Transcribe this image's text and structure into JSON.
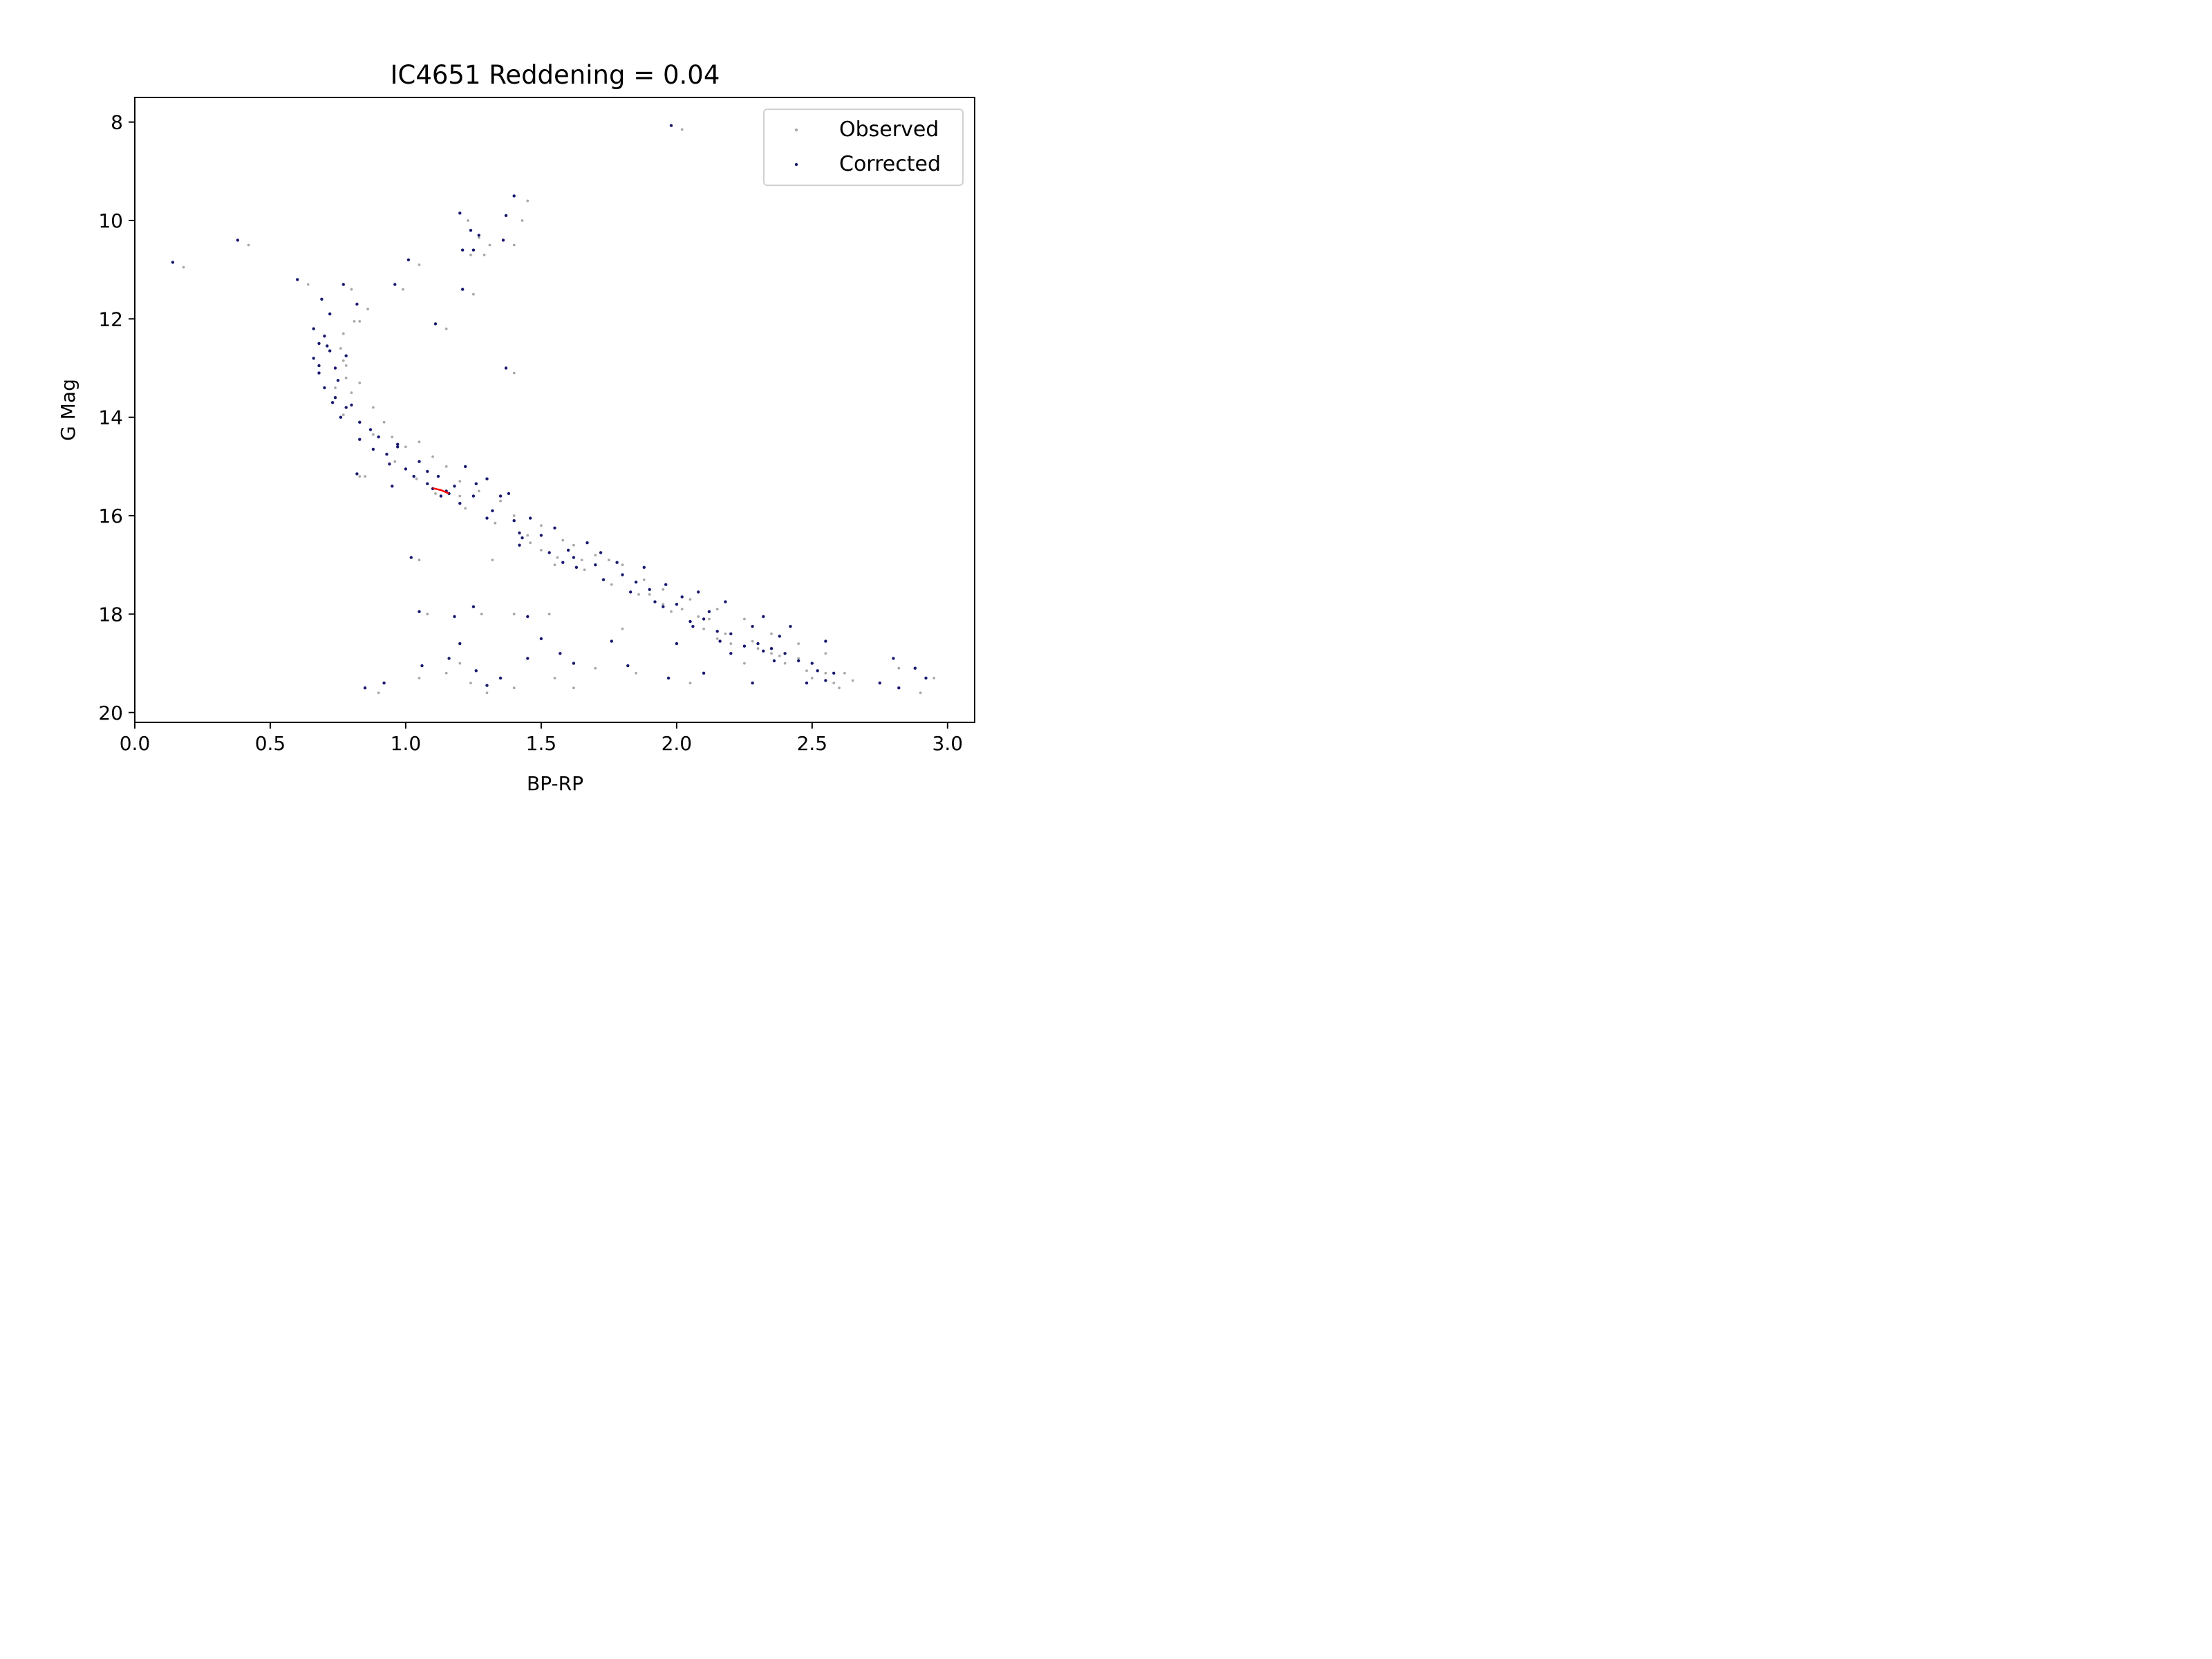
{
  "chart_data": {
    "type": "scatter",
    "title": "IC4651 Reddening = 0.04",
    "xlabel": "BP-RP",
    "ylabel": "G Mag",
    "xlim": [
      0.0,
      3.1
    ],
    "ylim": [
      20.2,
      7.5
    ],
    "y_inverted": true,
    "xticks": [
      0.0,
      0.5,
      1.0,
      1.5,
      2.0,
      2.5,
      3.0
    ],
    "xtick_labels": [
      "0.0",
      "0.5",
      "1.0",
      "1.5",
      "2.0",
      "2.5",
      "3.0"
    ],
    "yticks": [
      8,
      10,
      12,
      14,
      16,
      18,
      20
    ],
    "ytick_labels": [
      "8",
      "10",
      "12",
      "14",
      "16",
      "18",
      "20"
    ],
    "grid": false,
    "legend_position": "top-right",
    "reddening": 0.04,
    "series": [
      {
        "name": "Observed",
        "color": "#a9a9a9",
        "points": [
          [
            2.02,
            8.15
          ],
          [
            1.45,
            9.6
          ],
          [
            1.43,
            10.0
          ],
          [
            1.23,
            10.0
          ],
          [
            1.27,
            10.35
          ],
          [
            1.31,
            10.5
          ],
          [
            1.4,
            10.5
          ],
          [
            1.29,
            10.7
          ],
          [
            1.24,
            10.7
          ],
          [
            0.42,
            10.5
          ],
          [
            0.18,
            10.95
          ],
          [
            1.05,
            10.9
          ],
          [
            0.64,
            11.3
          ],
          [
            1.25,
            11.5
          ],
          [
            0.99,
            11.4
          ],
          [
            0.8,
            11.4
          ],
          [
            0.86,
            11.8
          ],
          [
            1.15,
            12.2
          ],
          [
            0.81,
            12.05
          ],
          [
            0.83,
            12.05
          ],
          [
            0.77,
            12.3
          ],
          [
            0.76,
            12.6
          ],
          [
            0.77,
            12.85
          ],
          [
            0.78,
            13.2
          ],
          [
            0.8,
            13.5
          ],
          [
            1.4,
            13.1
          ],
          [
            0.83,
            13.3
          ],
          [
            0.88,
            13.8
          ],
          [
            0.92,
            14.1
          ],
          [
            0.95,
            14.4
          ],
          [
            1.05,
            14.5
          ],
          [
            1.1,
            14.8
          ],
          [
            1.15,
            15.0
          ],
          [
            0.85,
            15.2
          ],
          [
            1.2,
            15.3
          ],
          [
            1.27,
            15.5
          ],
          [
            1.35,
            15.7
          ],
          [
            1.4,
            16.0
          ],
          [
            1.5,
            16.2
          ],
          [
            1.58,
            16.5
          ],
          [
            1.7,
            16.8
          ],
          [
            1.8,
            17.0
          ],
          [
            1.88,
            17.3
          ],
          [
            1.95,
            17.5
          ],
          [
            2.05,
            17.7
          ],
          [
            2.15,
            17.9
          ],
          [
            2.25,
            18.1
          ],
          [
            2.35,
            18.4
          ],
          [
            2.45,
            18.6
          ],
          [
            2.55,
            18.8
          ],
          [
            2.62,
            19.2
          ],
          [
            2.65,
            19.35
          ],
          [
            2.6,
            19.5
          ],
          [
            2.5,
            19.3
          ],
          [
            1.32,
            16.9
          ],
          [
            1.5,
            16.7
          ],
          [
            1.55,
            17.0
          ],
          [
            1.62,
            16.6
          ],
          [
            1.75,
            16.9
          ],
          [
            1.9,
            17.6
          ],
          [
            2.02,
            17.9
          ],
          [
            1.3,
            19.6
          ],
          [
            1.24,
            19.4
          ],
          [
            1.2,
            19.0
          ],
          [
            1.15,
            19.2
          ],
          [
            1.05,
            19.3
          ],
          [
            0.9,
            19.6
          ],
          [
            1.4,
            19.5
          ],
          [
            1.55,
            19.3
          ],
          [
            1.62,
            19.5
          ],
          [
            1.7,
            19.1
          ],
          [
            1.85,
            19.2
          ],
          [
            2.05,
            19.4
          ],
          [
            2.25,
            19.0
          ],
          [
            2.9,
            19.6
          ],
          [
            2.95,
            19.3
          ],
          [
            2.82,
            19.1
          ],
          [
            1.08,
            18.0
          ],
          [
            1.28,
            18.0
          ],
          [
            1.4,
            18.0
          ],
          [
            1.53,
            18.0
          ],
          [
            1.8,
            18.3
          ],
          [
            2.15,
            18.5
          ],
          [
            2.3,
            18.7
          ],
          [
            2.45,
            18.9
          ],
          [
            1.05,
            16.9
          ],
          [
            0.83,
            15.2
          ],
          [
            1.0,
            14.6
          ],
          [
            1.2,
            15.6
          ],
          [
            1.45,
            16.4
          ],
          [
            1.65,
            16.9
          ],
          [
            1.95,
            17.8
          ],
          [
            2.1,
            18.3
          ],
          [
            2.2,
            18.6
          ],
          [
            2.35,
            18.8
          ],
          [
            2.4,
            19.0
          ],
          [
            2.55,
            19.2
          ],
          [
            2.58,
            19.4
          ],
          [
            2.12,
            18.1
          ],
          [
            2.08,
            18.05
          ],
          [
            0.78,
            12.95
          ],
          [
            0.74,
            13.4
          ],
          [
            0.77,
            13.95
          ],
          [
            0.88,
            14.35
          ],
          [
            0.96,
            14.9
          ],
          [
            1.04,
            15.25
          ],
          [
            1.11,
            15.55
          ],
          [
            1.22,
            15.85
          ],
          [
            1.33,
            16.15
          ],
          [
            1.46,
            16.55
          ],
          [
            1.56,
            16.85
          ],
          [
            1.66,
            17.1
          ],
          [
            1.76,
            17.4
          ],
          [
            1.86,
            17.6
          ],
          [
            1.98,
            17.95
          ],
          [
            2.18,
            18.4
          ],
          [
            2.28,
            18.55
          ],
          [
            2.38,
            18.85
          ],
          [
            2.48,
            19.15
          ]
        ]
      },
      {
        "name": "Corrected",
        "color": "#191970",
        "points": [
          [
            1.98,
            8.07
          ],
          [
            1.4,
            9.5
          ],
          [
            1.37,
            9.9
          ],
          [
            1.2,
            9.85
          ],
          [
            1.24,
            10.2
          ],
          [
            1.27,
            10.3
          ],
          [
            1.36,
            10.4
          ],
          [
            1.25,
            10.6
          ],
          [
            1.21,
            10.6
          ],
          [
            0.38,
            10.4
          ],
          [
            0.14,
            10.85
          ],
          [
            1.01,
            10.8
          ],
          [
            0.6,
            11.2
          ],
          [
            1.21,
            11.4
          ],
          [
            0.96,
            11.3
          ],
          [
            0.77,
            11.3
          ],
          [
            0.82,
            11.7
          ],
          [
            1.11,
            12.1
          ],
          [
            0.69,
            11.6
          ],
          [
            0.72,
            11.9
          ],
          [
            0.66,
            12.2
          ],
          [
            0.68,
            12.5
          ],
          [
            0.66,
            12.8
          ],
          [
            0.68,
            13.1
          ],
          [
            0.7,
            13.4
          ],
          [
            1.37,
            13.0
          ],
          [
            0.74,
            13.6
          ],
          [
            0.78,
            13.8
          ],
          [
            0.83,
            14.1
          ],
          [
            0.9,
            14.4
          ],
          [
            0.97,
            14.6
          ],
          [
            1.05,
            14.9
          ],
          [
            1.12,
            15.2
          ],
          [
            1.18,
            15.4
          ],
          [
            1.25,
            15.6
          ],
          [
            1.32,
            15.9
          ],
          [
            1.4,
            16.1
          ],
          [
            1.5,
            16.4
          ],
          [
            1.6,
            16.7
          ],
          [
            1.7,
            17.0
          ],
          [
            1.8,
            17.2
          ],
          [
            1.9,
            17.5
          ],
          [
            2.0,
            17.8
          ],
          [
            2.1,
            18.1
          ],
          [
            2.2,
            18.4
          ],
          [
            2.3,
            18.6
          ],
          [
            2.4,
            18.8
          ],
          [
            2.5,
            19.0
          ],
          [
            2.58,
            19.2
          ],
          [
            2.48,
            19.4
          ],
          [
            1.02,
            16.85
          ],
          [
            0.82,
            15.15
          ],
          [
            0.97,
            14.55
          ],
          [
            1.16,
            15.55
          ],
          [
            1.42,
            16.35
          ],
          [
            1.62,
            16.85
          ],
          [
            1.92,
            17.75
          ],
          [
            2.06,
            18.25
          ],
          [
            2.16,
            18.55
          ],
          [
            2.32,
            18.75
          ],
          [
            2.36,
            18.95
          ],
          [
            2.52,
            19.15
          ],
          [
            2.55,
            19.35
          ],
          [
            2.8,
            18.9
          ],
          [
            2.88,
            19.1
          ],
          [
            2.92,
            19.3
          ],
          [
            2.75,
            19.4
          ],
          [
            2.82,
            19.5
          ],
          [
            1.05,
            17.95
          ],
          [
            1.18,
            18.05
          ],
          [
            1.25,
            17.85
          ],
          [
            1.45,
            18.05
          ],
          [
            1.5,
            18.5
          ],
          [
            1.57,
            18.8
          ],
          [
            1.76,
            18.55
          ],
          [
            2.0,
            18.6
          ],
          [
            2.2,
            18.8
          ],
          [
            1.26,
            19.15
          ],
          [
            1.2,
            18.6
          ],
          [
            1.16,
            18.9
          ],
          [
            1.06,
            19.05
          ],
          [
            0.92,
            19.4
          ],
          [
            0.85,
            19.5
          ],
          [
            1.3,
            19.45
          ],
          [
            1.35,
            19.3
          ],
          [
            1.45,
            18.9
          ],
          [
            1.62,
            19.0
          ],
          [
            1.82,
            19.05
          ],
          [
            1.97,
            19.3
          ],
          [
            2.1,
            19.2
          ],
          [
            2.28,
            19.4
          ],
          [
            1.1,
            15.45
          ],
          [
            1.15,
            15.5
          ],
          [
            0.7,
            12.35
          ],
          [
            0.72,
            12.65
          ],
          [
            0.68,
            12.95
          ],
          [
            0.75,
            13.25
          ],
          [
            0.8,
            13.75
          ],
          [
            0.87,
            14.25
          ],
          [
            0.93,
            14.75
          ],
          [
            1.0,
            15.05
          ],
          [
            1.08,
            15.35
          ],
          [
            1.2,
            15.75
          ],
          [
            1.3,
            16.05
          ],
          [
            1.43,
            16.45
          ],
          [
            1.53,
            16.75
          ],
          [
            1.63,
            17.05
          ],
          [
            1.73,
            17.3
          ],
          [
            1.83,
            17.55
          ],
          [
            1.95,
            17.85
          ],
          [
            2.05,
            18.15
          ],
          [
            2.15,
            18.35
          ],
          [
            2.25,
            18.65
          ],
          [
            2.35,
            18.7
          ],
          [
            2.45,
            18.95
          ],
          [
            1.26,
            15.35
          ],
          [
            1.35,
            15.6
          ],
          [
            1.42,
            16.6
          ],
          [
            1.58,
            16.95
          ],
          [
            1.72,
            16.75
          ],
          [
            1.85,
            17.35
          ],
          [
            2.02,
            17.65
          ],
          [
            2.12,
            17.95
          ],
          [
            2.28,
            18.25
          ],
          [
            2.38,
            18.45
          ],
          [
            0.95,
            15.4
          ],
          [
            1.08,
            15.1
          ],
          [
            1.22,
            15.0
          ],
          [
            1.3,
            15.25
          ],
          [
            1.38,
            15.55
          ],
          [
            1.46,
            16.05
          ],
          [
            1.55,
            16.25
          ],
          [
            1.67,
            16.55
          ],
          [
            1.78,
            16.95
          ],
          [
            1.88,
            17.05
          ],
          [
            1.96,
            17.4
          ],
          [
            2.08,
            17.55
          ],
          [
            2.18,
            17.75
          ],
          [
            2.32,
            18.05
          ],
          [
            2.42,
            18.25
          ],
          [
            2.55,
            18.55
          ],
          [
            0.74,
            13.0
          ],
          [
            0.71,
            12.55
          ],
          [
            0.78,
            12.75
          ],
          [
            0.73,
            13.7
          ],
          [
            0.76,
            14.0
          ],
          [
            0.83,
            14.45
          ],
          [
            0.88,
            14.65
          ],
          [
            0.94,
            14.95
          ],
          [
            1.03,
            15.2
          ],
          [
            1.13,
            15.6
          ]
        ]
      },
      {
        "name": "",
        "color": "#ff0000",
        "type": "line",
        "points": [
          [
            1.1,
            15.44
          ],
          [
            1.13,
            15.48
          ],
          [
            1.16,
            15.55
          ]
        ]
      }
    ]
  }
}
